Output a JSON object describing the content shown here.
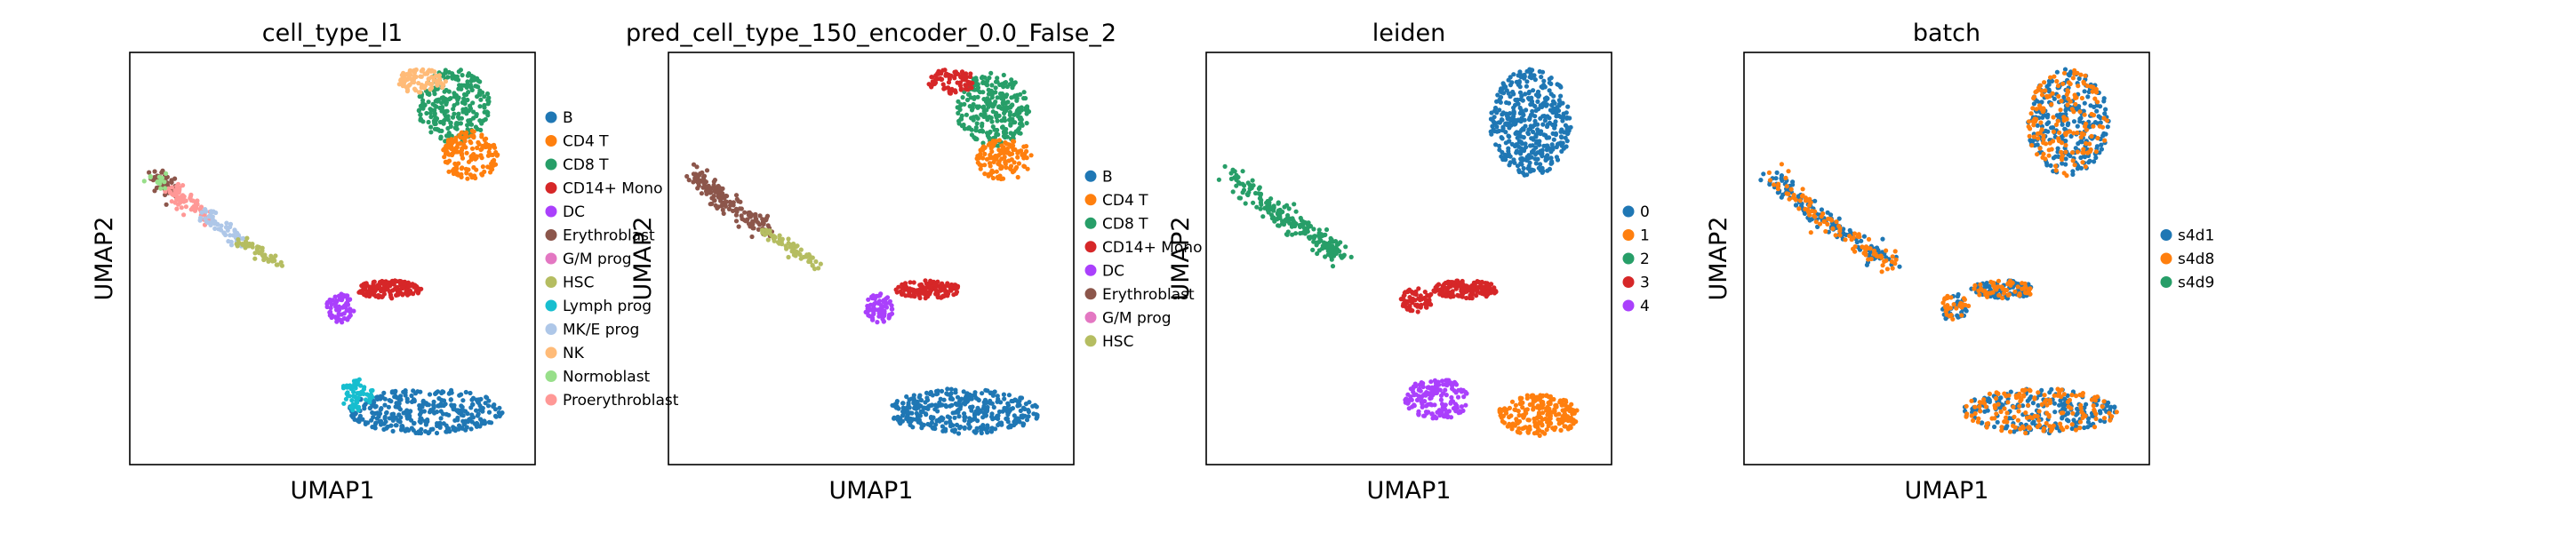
{
  "chart_data": [
    {
      "type": "scatter",
      "title": "cell_type_l1",
      "xlabel": "UMAP1",
      "ylabel": "UMAP2",
      "grid": false,
      "legend_placement": "right",
      "categories": [
        {
          "name": "B",
          "color": "#1f77b4"
        },
        {
          "name": "CD4 T",
          "color": "#ff7f0e"
        },
        {
          "name": "CD8 T",
          "color": "#279e68"
        },
        {
          "name": "CD14+ Mono",
          "color": "#d62728"
        },
        {
          "name": "DC",
          "color": "#aa40fc"
        },
        {
          "name": "Erythroblast",
          "color": "#8c564b"
        },
        {
          "name": "G/M prog",
          "color": "#e377c2"
        },
        {
          "name": "HSC",
          "color": "#b5bd61"
        },
        {
          "name": "Lymph prog",
          "color": "#17becf"
        },
        {
          "name": "MK/E prog",
          "color": "#aec7e8"
        },
        {
          "name": "NK",
          "color": "#ffbb78"
        },
        {
          "name": "Normoblast",
          "color": "#98df8a"
        },
        {
          "name": "Proerythroblast",
          "color": "#ff9896"
        }
      ]
    },
    {
      "type": "scatter",
      "title": "pred_cell_type_150_encoder_0.0_False_2",
      "xlabel": "UMAP1",
      "ylabel": "UMAP2",
      "grid": false,
      "legend_placement": "right",
      "categories": [
        {
          "name": "B",
          "color": "#1f77b4"
        },
        {
          "name": "CD4 T",
          "color": "#ff7f0e"
        },
        {
          "name": "CD8 T",
          "color": "#279e68"
        },
        {
          "name": "CD14+ Mono",
          "color": "#d62728"
        },
        {
          "name": "DC",
          "color": "#aa40fc"
        },
        {
          "name": "Erythroblast",
          "color": "#8c564b"
        },
        {
          "name": "G/M prog",
          "color": "#e377c2"
        },
        {
          "name": "HSC",
          "color": "#b5bd61"
        }
      ]
    },
    {
      "type": "scatter",
      "title": "leiden",
      "xlabel": "UMAP1",
      "ylabel": "UMAP2",
      "grid": false,
      "legend_placement": "right",
      "categories": [
        {
          "name": "0",
          "color": "#1f77b4"
        },
        {
          "name": "1",
          "color": "#ff7f0e"
        },
        {
          "name": "2",
          "color": "#279e68"
        },
        {
          "name": "3",
          "color": "#d62728"
        },
        {
          "name": "4",
          "color": "#aa40fc"
        }
      ]
    },
    {
      "type": "scatter",
      "title": "batch",
      "xlabel": "UMAP1",
      "ylabel": "UMAP2",
      "grid": false,
      "legend_placement": "right",
      "categories": [
        {
          "name": "s4d1",
          "color": "#1f77b4"
        },
        {
          "name": "s4d8",
          "color": "#ff7f0e"
        },
        {
          "name": "s4d9",
          "color": "#279e68"
        }
      ]
    }
  ]
}
